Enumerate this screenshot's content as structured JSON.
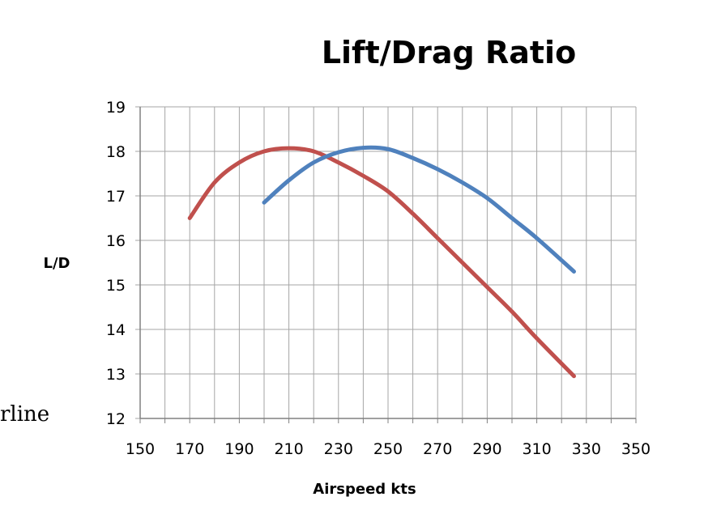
{
  "side_text": "rline",
  "chart_data": {
    "type": "line",
    "title": "Lift/Drag Ratio",
    "xlabel": "Airspeed kts",
    "ylabel": "L/D",
    "xlim": [
      150,
      350
    ],
    "ylim": [
      12,
      19
    ],
    "xticks": [
      150,
      170,
      190,
      210,
      230,
      250,
      270,
      290,
      310,
      330,
      350
    ],
    "yticks": [
      12,
      13,
      14,
      15,
      16,
      17,
      18,
      19
    ],
    "grid": true,
    "legend": "none",
    "series": [
      {
        "color": "#c0504d",
        "x": [
          170,
          180,
          190,
          200,
          210,
          220,
          230,
          240,
          250,
          260,
          270,
          280,
          290,
          300,
          310,
          325
        ],
        "y": [
          16.5,
          17.3,
          17.75,
          18.0,
          18.07,
          18.0,
          17.75,
          17.45,
          17.1,
          16.6,
          16.05,
          15.5,
          14.95,
          14.4,
          13.8,
          12.95
        ]
      },
      {
        "color": "#4f81bd",
        "x": [
          200,
          210,
          220,
          230,
          240,
          250,
          260,
          270,
          280,
          290,
          300,
          310,
          325
        ],
        "y": [
          16.85,
          17.35,
          17.75,
          17.98,
          18.08,
          18.05,
          17.85,
          17.6,
          17.3,
          16.95,
          16.5,
          16.05,
          15.3
        ]
      }
    ]
  }
}
